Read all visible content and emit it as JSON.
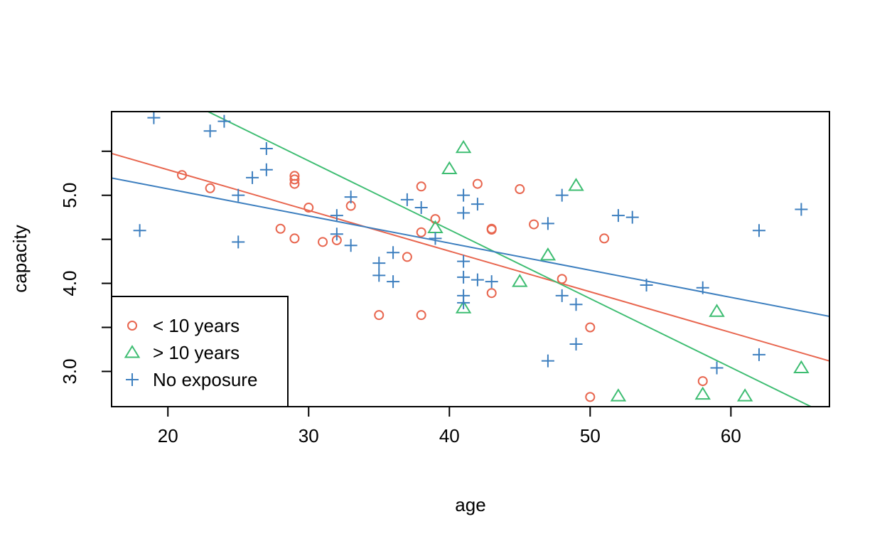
{
  "chart_data": {
    "type": "scatter",
    "title": "",
    "xlabel": "age",
    "ylabel": "capacity",
    "xlim": [
      16,
      67
    ],
    "ylim": [
      2.6,
      5.95
    ],
    "x_ticks": [
      "20",
      "30",
      "40",
      "50",
      "60"
    ],
    "y_ticks": [
      "3.0",
      "",
      "4.0",
      "",
      "5.0",
      ""
    ],
    "y_tick_values": [
      3.0,
      3.5,
      4.0,
      4.5,
      5.0,
      5.5
    ],
    "x_tick_values": [
      20,
      30,
      40,
      50,
      60
    ],
    "grid": false,
    "legend_position": "bottom-left",
    "series": [
      {
        "name": "< 10 years",
        "marker": "circle",
        "color": "#E8664F",
        "points": [
          [
            21,
            5.23
          ],
          [
            23,
            5.08
          ],
          [
            28,
            4.62
          ],
          [
            29,
            5.22
          ],
          [
            29,
            5.18
          ],
          [
            29,
            5.13
          ],
          [
            29,
            4.51
          ],
          [
            30,
            4.86
          ],
          [
            31,
            4.47
          ],
          [
            32,
            4.49
          ],
          [
            33,
            4.88
          ],
          [
            35,
            3.64
          ],
          [
            37,
            4.3
          ],
          [
            38,
            5.1
          ],
          [
            38,
            4.58
          ],
          [
            38,
            3.64
          ],
          [
            39,
            4.73
          ],
          [
            42,
            5.13
          ],
          [
            43,
            4.62
          ],
          [
            43,
            4.61
          ],
          [
            43,
            3.89
          ],
          [
            45,
            5.07
          ],
          [
            46,
            4.67
          ],
          [
            48,
            4.05
          ],
          [
            50,
            3.5
          ],
          [
            50,
            2.71
          ],
          [
            51,
            4.51
          ],
          [
            58,
            2.89
          ]
        ],
        "fit": {
          "intercept": 6.214,
          "slope": -0.0462
        }
      },
      {
        "name": "> 10 years",
        "marker": "triangle",
        "color": "#3EBD72",
        "points": [
          [
            39,
            4.63
          ],
          [
            40,
            5.3
          ],
          [
            41,
            5.54
          ],
          [
            41,
            3.72
          ],
          [
            45,
            4.02
          ],
          [
            47,
            4.32
          ],
          [
            49,
            5.11
          ],
          [
            52,
            2.72
          ],
          [
            58,
            2.74
          ],
          [
            59,
            3.68
          ],
          [
            61,
            2.72
          ],
          [
            65,
            3.04
          ]
        ],
        "fit": {
          "intercept": 7.737,
          "slope": -0.0782
        }
      },
      {
        "name": "No exposure",
        "marker": "plus",
        "color": "#3D7FBF",
        "points": [
          [
            18,
            4.6
          ],
          [
            19,
            5.88
          ],
          [
            23,
            5.73
          ],
          [
            24,
            5.84
          ],
          [
            25,
            5.0
          ],
          [
            25,
            4.47
          ],
          [
            26,
            5.2
          ],
          [
            27,
            5.53
          ],
          [
            27,
            5.29
          ],
          [
            32,
            4.77
          ],
          [
            32,
            4.56
          ],
          [
            33,
            4.98
          ],
          [
            33,
            4.43
          ],
          [
            35,
            4.23
          ],
          [
            35,
            4.09
          ],
          [
            36,
            4.35
          ],
          [
            36,
            4.02
          ],
          [
            37,
            4.95
          ],
          [
            38,
            4.86
          ],
          [
            39,
            4.51
          ],
          [
            41,
            5.0
          ],
          [
            41,
            4.8
          ],
          [
            41,
            4.25
          ],
          [
            41,
            4.07
          ],
          [
            41,
            3.86
          ],
          [
            41,
            3.78
          ],
          [
            42,
            4.9
          ],
          [
            42,
            4.04
          ],
          [
            43,
            4.02
          ],
          [
            47,
            4.68
          ],
          [
            47,
            3.12
          ],
          [
            48,
            5.0
          ],
          [
            48,
            3.86
          ],
          [
            49,
            3.76
          ],
          [
            49,
            3.31
          ],
          [
            52,
            4.77
          ],
          [
            53,
            4.75
          ],
          [
            54,
            3.98
          ],
          [
            58,
            3.95
          ],
          [
            59,
            3.04
          ],
          [
            62,
            4.6
          ],
          [
            62,
            3.19
          ],
          [
            65,
            4.84
          ]
        ],
        "fit": {
          "intercept": 5.689,
          "slope": -0.0308
        }
      }
    ]
  }
}
